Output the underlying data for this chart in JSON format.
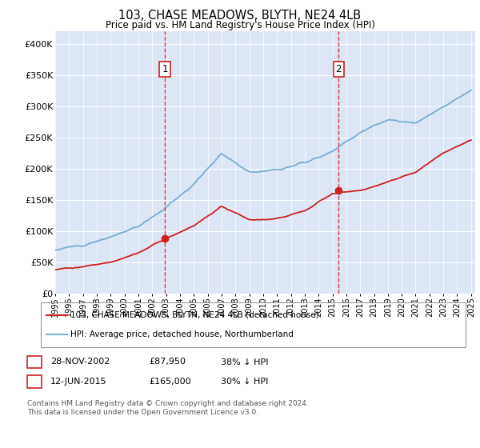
{
  "title": "103, CHASE MEADOWS, BLYTH, NE24 4LB",
  "subtitle": "Price paid vs. HM Land Registry's House Price Index (HPI)",
  "ylabel_ticks": [
    "£0",
    "£50K",
    "£100K",
    "£150K",
    "£200K",
    "£250K",
    "£300K",
    "£350K",
    "£400K"
  ],
  "ytick_vals": [
    0,
    50000,
    100000,
    150000,
    200000,
    250000,
    300000,
    350000,
    400000
  ],
  "ylim": [
    0,
    420000
  ],
  "x_start_year": 1995,
  "x_end_year": 2025,
  "sale1_x": 2002.91,
  "sale1_price": 87950,
  "sale1_label": "1",
  "sale2_x": 2015.45,
  "sale2_price": 165000,
  "sale2_label": "2",
  "legend_red": "103, CHASE MEADOWS, BLYTH, NE24 4LB (detached house)",
  "legend_blue": "HPI: Average price, detached house, Northumberland",
  "table_row1": [
    "1",
    "28-NOV-2002",
    "£87,950",
    "38% ↓ HPI"
  ],
  "table_row2": [
    "2",
    "12-JUN-2015",
    "£165,000",
    "30% ↓ HPI"
  ],
  "footnote1": "Contains HM Land Registry data © Crown copyright and database right 2024.",
  "footnote2": "This data is licensed under the Open Government Licence v3.0.",
  "background_color": "#dce6f5",
  "fig_bg": "#ffffff",
  "red_color": "#cc2222",
  "blue_color": "#7aafd4",
  "grid_color": "#ffffff",
  "hpi_anchor_years": [
    1995,
    1997,
    1999,
    2001,
    2003,
    2005,
    2007,
    2009,
    2011,
    2013,
    2015,
    2017,
    2019,
    2021,
    2023,
    2025
  ],
  "hpi_anchor_vals": [
    70000,
    78000,
    90000,
    108000,
    138000,
    175000,
    225000,
    195000,
    198000,
    210000,
    228000,
    258000,
    278000,
    272000,
    300000,
    325000
  ],
  "price_anchor_years": [
    1995,
    1997,
    1999,
    2001,
    2003,
    2005,
    2007,
    2009,
    2011,
    2013,
    2015,
    2017,
    2019,
    2021,
    2023,
    2025
  ],
  "price_anchor_vals": [
    38000,
    43000,
    50000,
    65000,
    88000,
    108000,
    140000,
    118000,
    120000,
    132000,
    160000,
    165000,
    178000,
    195000,
    225000,
    245000
  ]
}
